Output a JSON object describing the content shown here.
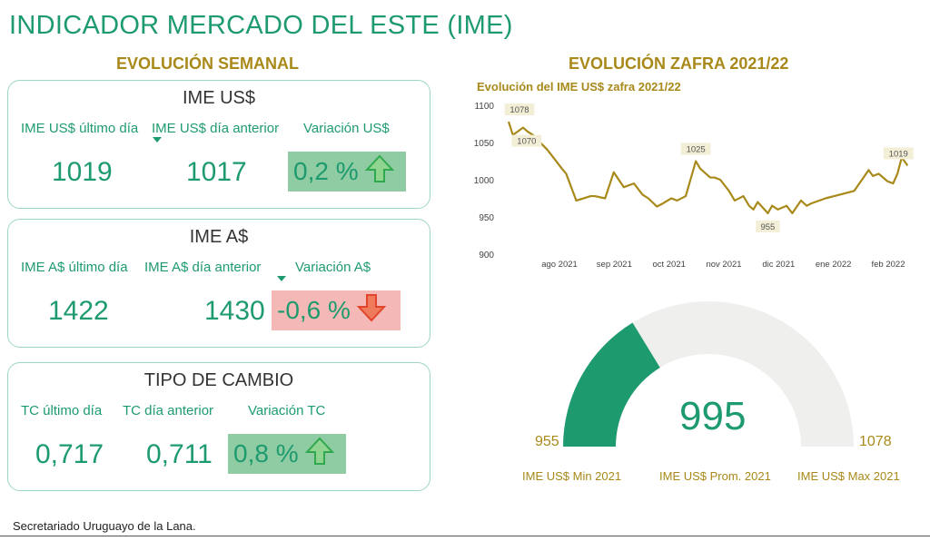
{
  "header": {
    "title": "INDICADOR MERCADO DEL ESTE (IME)"
  },
  "sections": {
    "weekly": "EVOLUCIÓN SEMANAL",
    "season": "EVOLUCIÓN ZAFRA 2021/22"
  },
  "cards": {
    "usd": {
      "title": "IME US$",
      "labels": [
        "IME US$ último día",
        "IME US$ día anterior",
        "Variación US$"
      ],
      "last": "1019",
      "previous": "1017",
      "variation": "0,2 %",
      "direction": "up"
    },
    "ars": {
      "title": "IME A$",
      "labels": [
        "IME A$ último día",
        "IME A$ día anterior",
        "Variación A$"
      ],
      "last": "1422",
      "previous": "1430",
      "variation": "-0,6 %",
      "direction": "down"
    },
    "tc": {
      "title": "TIPO DE CAMBIO",
      "labels": [
        "TC último día",
        "TC día anterior",
        "Variación TC"
      ],
      "last": "0,717",
      "previous": "0,711",
      "variation": "0,8 %",
      "direction": "up"
    }
  },
  "colors": {
    "green": "#1e9b6e",
    "gold": "#a8891a",
    "up_bg": "#8fcca3",
    "down_bg": "#f4b9b6",
    "up_arrow": "#2fa84f",
    "down_arrow": "#e0442a",
    "gauge_track": "#efefed"
  },
  "chart_data": [
    {
      "type": "line",
      "title": "Evolución del IME US$ zafra 2021/22",
      "ylim": [
        900,
        1100
      ],
      "yticks": [
        900,
        950,
        1000,
        1050,
        1100
      ],
      "xticks": [
        "ago 2021",
        "sep 2021",
        "oct 2021",
        "nov 2021",
        "dic 2021",
        "ene 2022",
        "feb 2022"
      ],
      "xlim": [
        0,
        28
      ],
      "x": [
        0,
        0.3,
        1.0,
        1.3,
        1.7,
        2.7,
        3.7,
        4.0,
        4.7,
        5.7,
        6.0,
        6.7,
        7.3,
        8.0,
        8.7,
        9.3,
        9.7,
        10.3,
        10.7,
        11.3,
        11.7,
        12.3,
        13.0,
        13.3,
        14.0,
        14.3,
        14.7,
        15.3,
        15.7,
        16.3,
        16.7,
        17.0,
        17.3,
        18.0,
        18.3,
        18.7,
        19.3,
        19.7,
        20.3,
        20.7,
        21.0,
        22.0,
        23.0,
        24.0,
        25.0,
        25.3,
        25.7,
        26.3,
        26.7,
        27.0,
        27.3,
        27.7
      ],
      "values": [
        1078,
        1060,
        1070,
        1065,
        1060,
        1040,
        1015,
        1008,
        972,
        978,
        978,
        975,
        1010,
        990,
        995,
        980,
        975,
        964,
        968,
        975,
        972,
        978,
        1025,
        1015,
        1003,
        1003,
        1000,
        985,
        972,
        978,
        965,
        960,
        970,
        955,
        965,
        960,
        965,
        955,
        972,
        965,
        968,
        975,
        980,
        985,
        1013,
        1005,
        1008,
        998,
        995,
        1008,
        1030,
        1019
      ],
      "labels": [
        {
          "x": 0,
          "value": 1078,
          "text": "1078"
        },
        {
          "x": 1.0,
          "value": 1070,
          "text": "1070"
        },
        {
          "x": 13.0,
          "value": 1025,
          "text": "1025"
        },
        {
          "x": 18.0,
          "value": 955,
          "text": "955"
        },
        {
          "x": 27.7,
          "value": 1019,
          "text": "1019"
        }
      ],
      "line_color": "#a8891a",
      "grid": false
    },
    {
      "type": "gauge",
      "min": 955,
      "max": 1078,
      "value": 995,
      "min_label": "955",
      "max_label": "1078",
      "value_label": "995",
      "captions": [
        "IME US$ Min 2021",
        "IME US$ Prom. 2021",
        "IME US$ Max 2021"
      ]
    }
  ],
  "footer": {
    "source": "Secretariado Uruguayo de la Lana."
  }
}
